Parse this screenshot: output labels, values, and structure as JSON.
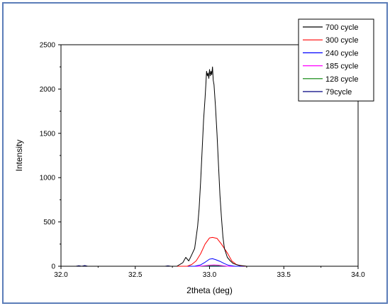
{
  "chart_data": {
    "type": "line",
    "xlabel": "2theta (deg)",
    "ylabel": "Intensity",
    "xlim": [
      32.0,
      34.0
    ],
    "ylim": [
      0,
      2500
    ],
    "xticks": [
      "32.0",
      "32.5",
      "33.0",
      "33.5",
      "34.0"
    ],
    "yticks": [
      "0",
      "500",
      "1000",
      "1500",
      "2000",
      "2500"
    ],
    "grid": false,
    "legend_position": "top-right",
    "series": [
      {
        "name": "700 cycle",
        "color": "#000000",
        "x": [
          32.0,
          32.3,
          32.78,
          32.82,
          32.84,
          32.86,
          32.88,
          32.9,
          32.92,
          32.93,
          32.94,
          32.95,
          32.96,
          32.97,
          32.975,
          32.98,
          32.985,
          32.99,
          32.995,
          33.0,
          33.005,
          33.01,
          33.015,
          33.02,
          33.025,
          33.03,
          33.04,
          33.05,
          33.06,
          33.07,
          33.08,
          33.09,
          33.1,
          33.12,
          33.14,
          33.16,
          33.2,
          33.25,
          33.3,
          34.0
        ],
        "y": [
          0,
          0,
          0,
          40,
          100,
          60,
          130,
          200,
          450,
          650,
          950,
          1300,
          1650,
          1900,
          2050,
          2200,
          2150,
          2180,
          2120,
          2220,
          2150,
          2200,
          2160,
          2250,
          2100,
          2050,
          1800,
          1500,
          1150,
          800,
          550,
          330,
          200,
          100,
          60,
          30,
          10,
          0,
          0,
          0
        ]
      },
      {
        "name": "300 cycle",
        "color": "#ff0000",
        "x": [
          32.0,
          32.85,
          32.88,
          32.91,
          32.94,
          32.97,
          33.0,
          33.02,
          33.05,
          33.08,
          33.12,
          33.15,
          33.18,
          33.21,
          33.25,
          34.0
        ],
        "y": [
          0,
          0,
          20,
          60,
          140,
          250,
          320,
          325,
          315,
          250,
          150,
          60,
          20,
          5,
          0,
          0
        ]
      },
      {
        "name": "240 cycle",
        "color": "#0000ff",
        "x": [
          32.0,
          32.9,
          32.94,
          32.97,
          33.0,
          33.02,
          33.04,
          33.07,
          33.1,
          33.13,
          33.17,
          34.0
        ],
        "y": [
          0,
          0,
          15,
          45,
          80,
          85,
          75,
          55,
          30,
          10,
          0,
          0
        ]
      },
      {
        "name": "185 cycle",
        "color": "#ff00ff",
        "x": [
          32.0,
          32.93,
          33.0,
          33.03,
          33.06,
          33.12,
          34.0
        ],
        "y": [
          0,
          0,
          12,
          15,
          12,
          0,
          0
        ]
      },
      {
        "name": "128 cycle",
        "color": "#008000",
        "x": [
          32.0,
          32.95,
          33.02,
          33.06,
          33.12,
          34.0
        ],
        "y": [
          0,
          0,
          6,
          5,
          0,
          0
        ]
      },
      {
        "name": "79cycle",
        "color": "#000080",
        "x": [
          32.0,
          32.1,
          32.12,
          32.14,
          32.16,
          32.18,
          32.2,
          32.7,
          32.72,
          32.74,
          34.0
        ],
        "y": [
          0,
          0,
          6,
          0,
          8,
          0,
          0,
          0,
          5,
          0,
          0
        ]
      }
    ]
  }
}
